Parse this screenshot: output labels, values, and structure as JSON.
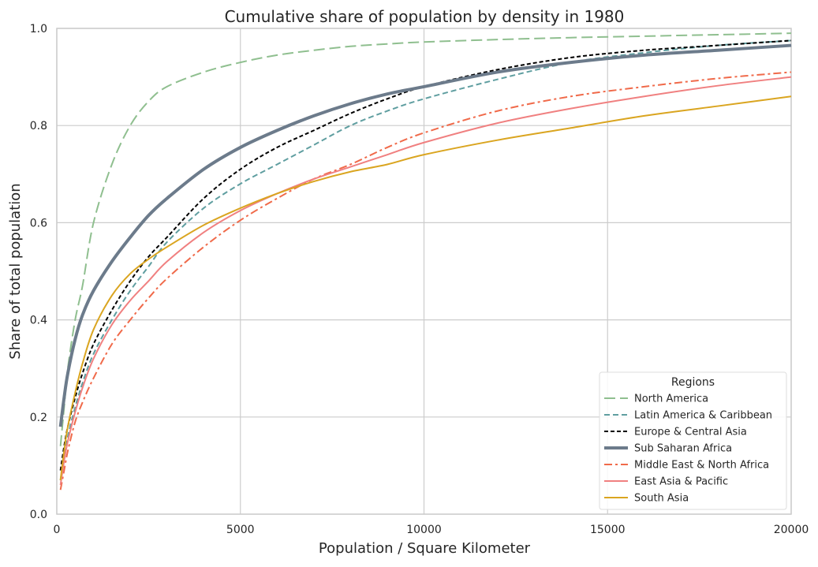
{
  "chart_data": {
    "type": "line",
    "title": "Cumulative share of population by density in 1980",
    "xlabel": "Population / Square Kilometer",
    "ylabel": "Share of total population",
    "xlim": [
      0,
      20000
    ],
    "ylim": [
      0.0,
      1.0
    ],
    "x_ticks": [
      0,
      5000,
      10000,
      15000,
      20000
    ],
    "x_tick_labels": [
      "0",
      "5000",
      "10000",
      "15000",
      "20000"
    ],
    "y_ticks": [
      0.0,
      0.2,
      0.4,
      0.6,
      0.8,
      1.0
    ],
    "y_tick_labels": [
      "0.0",
      "0.2",
      "0.4",
      "0.6",
      "0.8",
      "1.0"
    ],
    "grid": true,
    "legend": {
      "title": "Regions",
      "placement": "lower-right"
    },
    "series": [
      {
        "name": "North America",
        "color": "#8fbf8f",
        "dash": "long-dash",
        "width": 2,
        "x": [
          100,
          200,
          300,
          500,
          700,
          1000,
          1500,
          2000,
          2500,
          3000,
          4000,
          5000,
          6000,
          7000,
          8000,
          9000,
          10000,
          12000,
          14000,
          16000,
          18000,
          20000
        ],
        "y": [
          0.14,
          0.22,
          0.3,
          0.4,
          0.47,
          0.6,
          0.72,
          0.8,
          0.85,
          0.88,
          0.91,
          0.93,
          0.945,
          0.955,
          0.963,
          0.968,
          0.972,
          0.977,
          0.981,
          0.984,
          0.987,
          0.99
        ]
      },
      {
        "name": "Latin America & Caribbean",
        "color": "#5f9ea0",
        "dash": "dash",
        "width": 2,
        "x": [
          100,
          200,
          300,
          500,
          700,
          1000,
          1500,
          2000,
          2500,
          3000,
          4000,
          5000,
          6000,
          7000,
          8000,
          9000,
          10000,
          12000,
          14000,
          16000,
          18000,
          20000
        ],
        "y": [
          0.07,
          0.12,
          0.16,
          0.22,
          0.27,
          0.33,
          0.4,
          0.46,
          0.51,
          0.56,
          0.63,
          0.68,
          0.72,
          0.76,
          0.8,
          0.83,
          0.855,
          0.895,
          0.93,
          0.95,
          0.965,
          0.975
        ]
      },
      {
        "name": "Europe & Central Asia",
        "color": "#000000",
        "dash": "short-dash",
        "width": 2,
        "x": [
          100,
          200,
          300,
          500,
          700,
          1000,
          1500,
          2000,
          2500,
          3000,
          4000,
          5000,
          6000,
          7000,
          8000,
          9000,
          10000,
          12000,
          14000,
          16000,
          18000,
          20000
        ],
        "y": [
          0.09,
          0.14,
          0.18,
          0.24,
          0.29,
          0.35,
          0.42,
          0.48,
          0.53,
          0.57,
          0.65,
          0.71,
          0.755,
          0.79,
          0.825,
          0.855,
          0.88,
          0.915,
          0.94,
          0.955,
          0.965,
          0.975
        ]
      },
      {
        "name": "Sub Saharan Africa",
        "color": "#6c7b8b",
        "dash": "solid",
        "width": 4,
        "x": [
          100,
          200,
          300,
          500,
          700,
          1000,
          1500,
          2000,
          2500,
          3000,
          4000,
          5000,
          6000,
          7000,
          8000,
          9000,
          10000,
          12000,
          14000,
          16000,
          18000,
          20000
        ],
        "y": [
          0.18,
          0.24,
          0.29,
          0.36,
          0.41,
          0.46,
          0.52,
          0.57,
          0.615,
          0.65,
          0.71,
          0.755,
          0.79,
          0.82,
          0.845,
          0.865,
          0.88,
          0.91,
          0.93,
          0.945,
          0.955,
          0.965
        ]
      },
      {
        "name": "Middle East & North Africa",
        "color": "#f06a4a",
        "dash": "dash-dot",
        "width": 2,
        "x": [
          100,
          200,
          300,
          500,
          700,
          1000,
          1500,
          2000,
          2500,
          3000,
          4000,
          5000,
          6000,
          7000,
          8000,
          9000,
          10000,
          12000,
          14000,
          16000,
          18000,
          20000
        ],
        "y": [
          0.05,
          0.09,
          0.13,
          0.19,
          0.23,
          0.28,
          0.35,
          0.4,
          0.445,
          0.485,
          0.55,
          0.605,
          0.65,
          0.69,
          0.72,
          0.755,
          0.785,
          0.83,
          0.86,
          0.88,
          0.897,
          0.91
        ]
      },
      {
        "name": "East Asia & Pacific",
        "color": "#f08080",
        "dash": "solid",
        "width": 2,
        "x": [
          100,
          200,
          300,
          500,
          700,
          1000,
          1500,
          2000,
          2500,
          3000,
          4000,
          5000,
          6000,
          7000,
          8000,
          9000,
          10000,
          12000,
          14000,
          16000,
          18000,
          20000
        ],
        "y": [
          0.06,
          0.11,
          0.15,
          0.21,
          0.26,
          0.32,
          0.39,
          0.44,
          0.48,
          0.52,
          0.58,
          0.625,
          0.66,
          0.69,
          0.715,
          0.74,
          0.765,
          0.805,
          0.835,
          0.86,
          0.882,
          0.9
        ]
      },
      {
        "name": "South Asia",
        "color": "#daa520",
        "dash": "solid",
        "width": 2,
        "x": [
          100,
          200,
          300,
          500,
          700,
          1000,
          1500,
          2000,
          2500,
          3000,
          4000,
          5000,
          6000,
          7000,
          8000,
          9000,
          10000,
          12000,
          14000,
          16000,
          18000,
          20000
        ],
        "y": [
          0.07,
          0.13,
          0.18,
          0.25,
          0.31,
          0.38,
          0.45,
          0.495,
          0.525,
          0.55,
          0.595,
          0.63,
          0.66,
          0.685,
          0.705,
          0.72,
          0.74,
          0.77,
          0.795,
          0.82,
          0.84,
          0.86
        ]
      }
    ]
  }
}
